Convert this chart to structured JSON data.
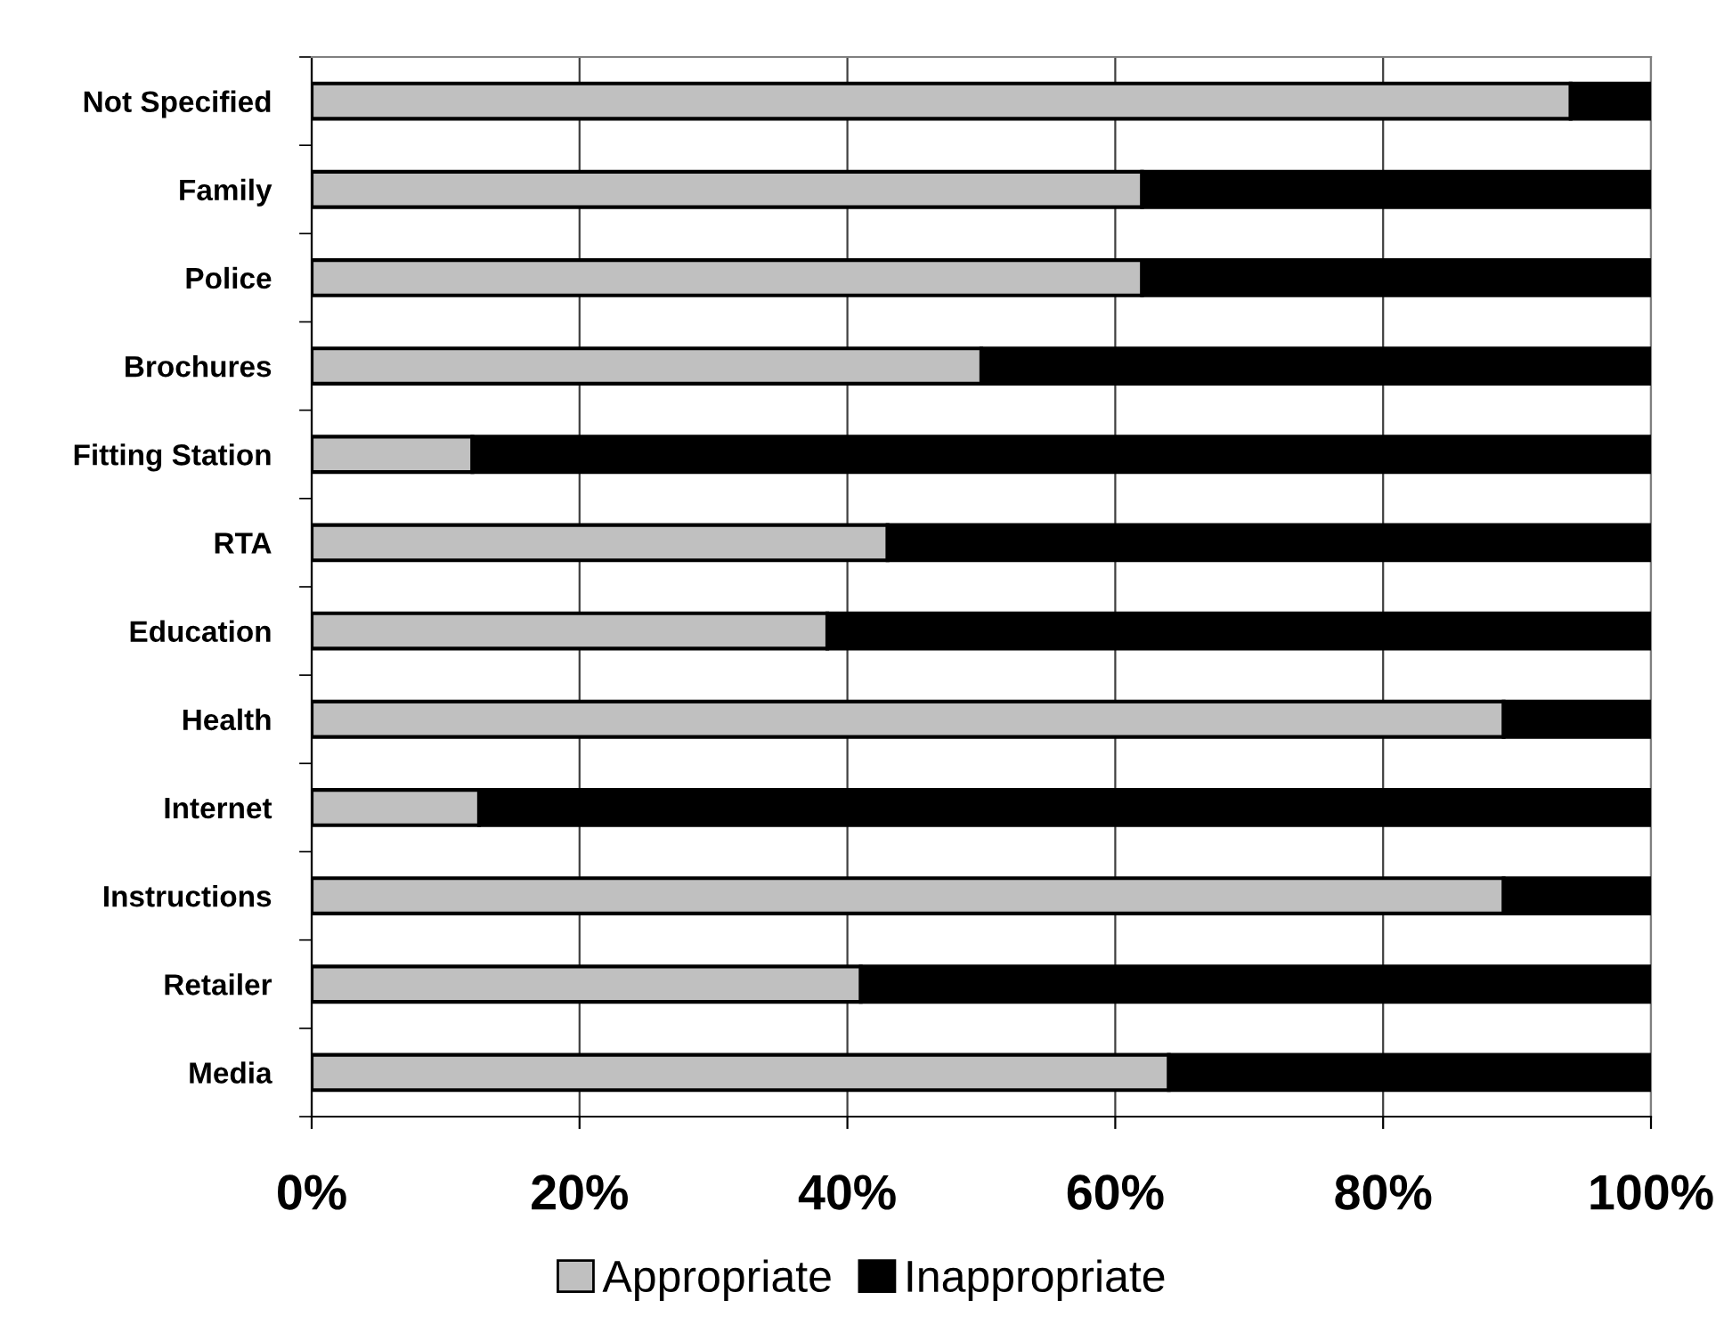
{
  "chart_data": {
    "type": "bar",
    "orientation": "horizontal",
    "stacked": true,
    "categories": [
      "Not Specified",
      "Family",
      "Police",
      "Brochures",
      "Fitting Station",
      "RTA",
      "Education",
      "Health",
      "Internet",
      "Instructions",
      "Retailer",
      "Media"
    ],
    "series": [
      {
        "name": "Appropriate",
        "color": "#c0c0c0",
        "values": [
          94,
          62,
          62,
          50,
          12,
          43,
          38.5,
          89,
          12.5,
          89,
          41,
          64
        ]
      },
      {
        "name": "Inappropriate",
        "color": "#000000",
        "values": [
          6,
          38,
          38,
          50,
          88,
          57,
          61.5,
          11,
          87.5,
          11,
          59,
          36
        ]
      }
    ],
    "xlim": [
      0,
      100
    ],
    "xticks": [
      {
        "value": 0,
        "label": "0%"
      },
      {
        "value": 20,
        "label": "20%"
      },
      {
        "value": 40,
        "label": "40%"
      },
      {
        "value": 60,
        "label": "60%"
      },
      {
        "value": 80,
        "label": "80%"
      },
      {
        "value": 100,
        "label": "100%"
      }
    ],
    "grid": "x",
    "legend": "bottom"
  }
}
